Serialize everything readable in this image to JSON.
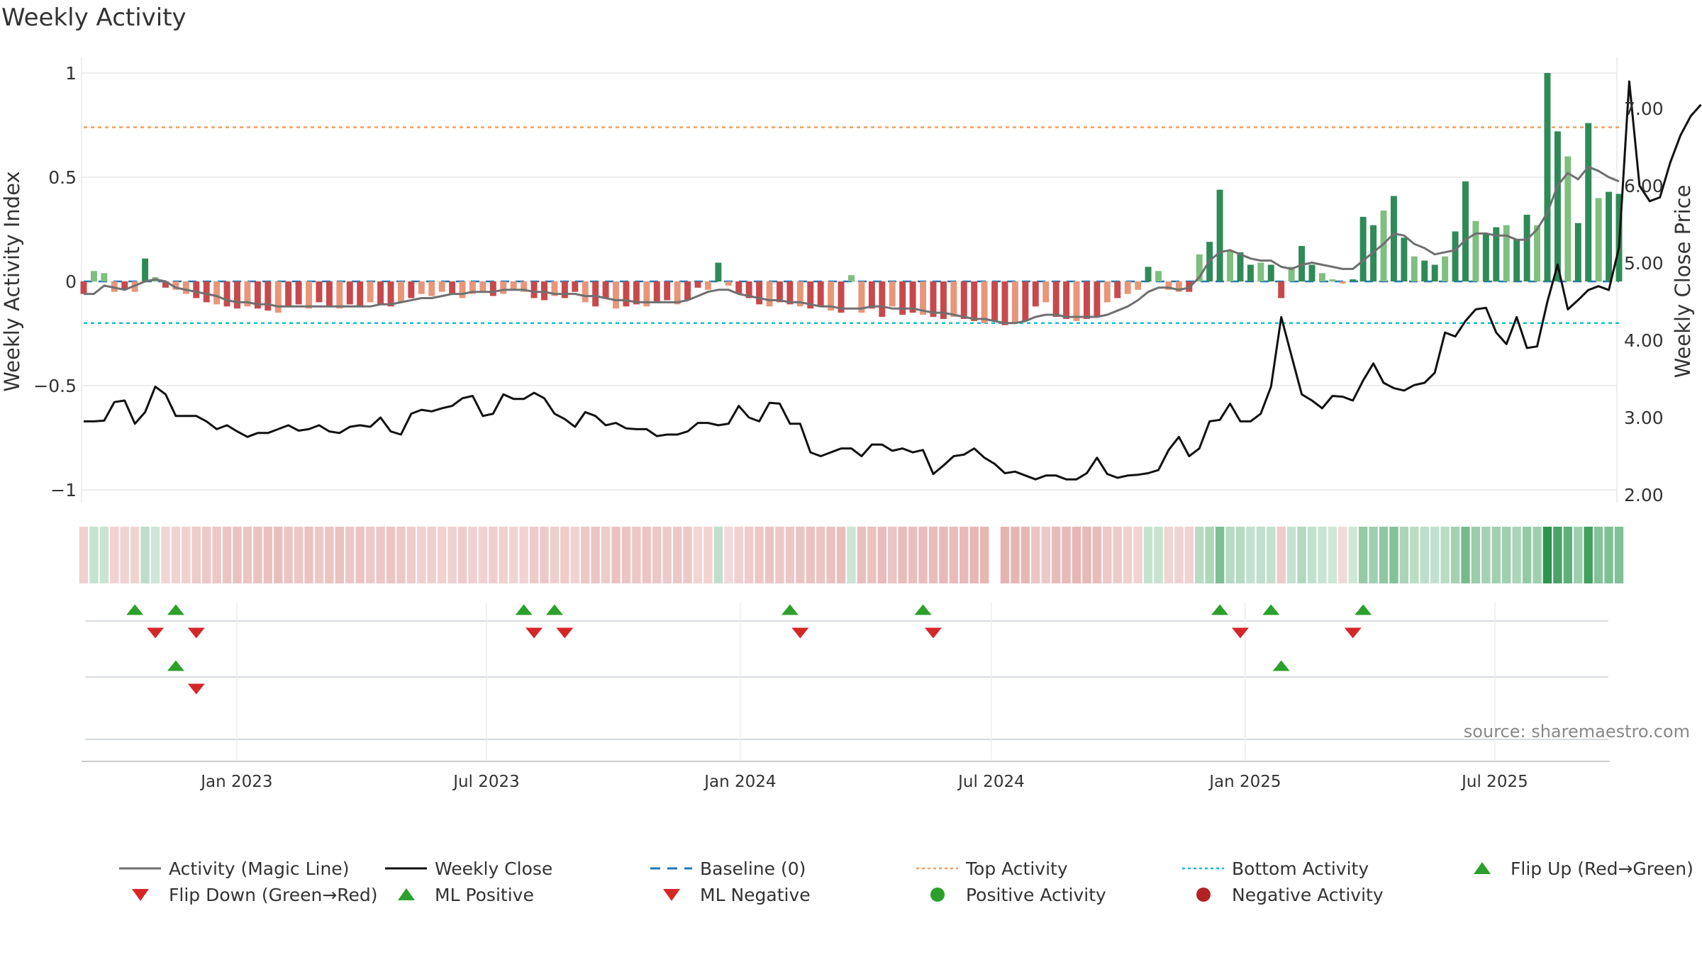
{
  "chart_data": {
    "type": "bar+line",
    "title": "Weekly Activity",
    "left_axis": {
      "label": "Weekly Activity Index",
      "ticks": [
        1,
        0.5,
        0,
        -0.5,
        -1
      ],
      "tick_labels": [
        "1",
        "0.5",
        "0",
        "−0.5",
        "−1"
      ],
      "range": [
        -1.05,
        1.05
      ]
    },
    "right_axis": {
      "label": "Weekly Close Price",
      "ticks": [
        7,
        6,
        5,
        4,
        3,
        2
      ],
      "tick_labels": [
        "7.00",
        "6.00",
        "5.00",
        "4.00",
        "3.00",
        "2.00"
      ],
      "range": [
        1.85,
        7.85
      ]
    },
    "x_axis": {
      "start": "2022-09-12",
      "end": "2025-09-29",
      "tick_labels": [
        "Jan 2023",
        "Jul 2023",
        "Jan 2024",
        "Jul 2024",
        "Jan 2025",
        "Jul 2025"
      ],
      "tick_dates": [
        "2023-01-01",
        "2023-07-01",
        "2024-01-01",
        "2024-07-01",
        "2025-01-01",
        "2025-07-01"
      ]
    },
    "reference_lines": {
      "baseline": 0,
      "top_activity": 0.74,
      "bottom_activity": -0.2
    },
    "weekly_activity": [
      -0.06,
      0.05,
      0.04,
      -0.05,
      -0.04,
      -0.05,
      0.11,
      0.02,
      -0.03,
      -0.04,
      -0.06,
      -0.08,
      -0.1,
      -0.11,
      -0.12,
      -0.13,
      -0.12,
      -0.13,
      -0.14,
      -0.15,
      -0.12,
      -0.11,
      -0.13,
      -0.1,
      -0.12,
      -0.13,
      -0.11,
      -0.12,
      -0.1,
      -0.11,
      -0.12,
      -0.1,
      -0.08,
      -0.06,
      -0.07,
      -0.05,
      -0.06,
      -0.08,
      -0.06,
      -0.05,
      -0.07,
      -0.06,
      -0.04,
      -0.05,
      -0.08,
      -0.09,
      -0.07,
      -0.08,
      -0.05,
      -0.1,
      -0.12,
      -0.08,
      -0.13,
      -0.12,
      -0.11,
      -0.12,
      -0.1,
      -0.09,
      -0.11,
      -0.09,
      -0.03,
      -0.04,
      0.09,
      -0.02,
      -0.06,
      -0.08,
      -0.11,
      -0.12,
      -0.1,
      -0.11,
      -0.12,
      -0.13,
      -0.12,
      -0.14,
      -0.15,
      0.03,
      -0.15,
      -0.13,
      -0.17,
      -0.12,
      -0.16,
      -0.15,
      -0.16,
      -0.17,
      -0.18,
      -0.17,
      -0.18,
      -0.19,
      -0.2,
      -0.19,
      -0.21,
      -0.2,
      -0.19,
      -0.12,
      -0.1,
      -0.17,
      -0.18,
      -0.19,
      -0.18,
      -0.17,
      -0.1,
      -0.08,
      -0.06,
      -0.04,
      0.07,
      0.05,
      -0.04,
      -0.05,
      -0.05,
      0.13,
      0.19,
      0.44,
      0.15,
      0.14,
      0.08,
      0.09,
      0.08,
      -0.08,
      0.07,
      0.17,
      0.08,
      0.04,
      0.01,
      -0.01,
      0.01,
      0.31,
      0.27,
      0.34,
      0.41,
      0.21,
      0.12,
      0.1,
      0.08,
      0.12,
      0.24,
      0.48,
      0.29,
      0.23,
      0.26,
      0.27,
      0.2,
      0.32,
      0.27,
      1.0,
      0.72,
      0.6,
      0.28,
      0.76,
      0.4,
      0.43,
      0.42
    ],
    "magic_line": [
      -0.06,
      -0.06,
      -0.02,
      -0.03,
      -0.04,
      -0.02,
      0.0,
      0.01,
      0.0,
      -0.03,
      -0.04,
      -0.05,
      -0.06,
      -0.07,
      -0.09,
      -0.1,
      -0.1,
      -0.11,
      -0.11,
      -0.12,
      -0.12,
      -0.12,
      -0.12,
      -0.12,
      -0.12,
      -0.12,
      -0.12,
      -0.12,
      -0.12,
      -0.11,
      -0.11,
      -0.1,
      -0.09,
      -0.08,
      -0.08,
      -0.07,
      -0.06,
      -0.06,
      -0.05,
      -0.05,
      -0.05,
      -0.04,
      -0.04,
      -0.04,
      -0.05,
      -0.05,
      -0.06,
      -0.06,
      -0.06,
      -0.07,
      -0.07,
      -0.08,
      -0.09,
      -0.09,
      -0.1,
      -0.1,
      -0.1,
      -0.1,
      -0.1,
      -0.09,
      -0.07,
      -0.05,
      -0.04,
      -0.04,
      -0.06,
      -0.07,
      -0.08,
      -0.09,
      -0.09,
      -0.1,
      -0.1,
      -0.11,
      -0.12,
      -0.12,
      -0.13,
      -0.13,
      -0.13,
      -0.12,
      -0.12,
      -0.13,
      -0.13,
      -0.13,
      -0.14,
      -0.15,
      -0.15,
      -0.16,
      -0.17,
      -0.18,
      -0.18,
      -0.19,
      -0.2,
      -0.2,
      -0.19,
      -0.17,
      -0.16,
      -0.16,
      -0.17,
      -0.17,
      -0.17,
      -0.17,
      -0.16,
      -0.14,
      -0.12,
      -0.09,
      -0.05,
      -0.03,
      -0.03,
      -0.04,
      -0.03,
      0.02,
      0.1,
      0.14,
      0.15,
      0.13,
      0.11,
      0.1,
      0.1,
      0.07,
      0.06,
      0.08,
      0.09,
      0.08,
      0.07,
      0.06,
      0.06,
      0.1,
      0.14,
      0.18,
      0.23,
      0.22,
      0.18,
      0.16,
      0.13,
      0.14,
      0.15,
      0.2,
      0.23,
      0.23,
      0.22,
      0.22,
      0.2,
      0.2,
      0.25,
      0.33,
      0.46,
      0.52,
      0.49,
      0.55,
      0.53,
      0.5,
      0.48
    ],
    "weekly_close": [
      2.95,
      2.95,
      2.96,
      3.2,
      3.22,
      2.92,
      3.07,
      3.4,
      3.3,
      3.02,
      3.02,
      3.02,
      2.95,
      2.85,
      2.9,
      2.82,
      2.75,
      2.8,
      2.8,
      2.85,
      2.9,
      2.83,
      2.85,
      2.9,
      2.82,
      2.8,
      2.88,
      2.9,
      2.88,
      3.0,
      2.82,
      2.78,
      3.05,
      3.1,
      3.08,
      3.12,
      3.15,
      3.25,
      3.28,
      3.02,
      3.05,
      3.3,
      3.24,
      3.24,
      3.32,
      3.25,
      3.05,
      2.98,
      2.88,
      3.07,
      3.02,
      2.9,
      2.93,
      2.86,
      2.85,
      2.85,
      2.76,
      2.78,
      2.78,
      2.82,
      2.93,
      2.93,
      2.9,
      2.92,
      3.15,
      3.0,
      2.95,
      3.19,
      3.18,
      2.92,
      2.92,
      2.55,
      2.5,
      2.55,
      2.6,
      2.6,
      2.5,
      2.65,
      2.65,
      2.57,
      2.6,
      2.55,
      2.58,
      2.27,
      2.38,
      2.5,
      2.52,
      2.6,
      2.48,
      2.4,
      2.28,
      2.3,
      2.25,
      2.2,
      2.25,
      2.25,
      2.2,
      2.2,
      2.28,
      2.48,
      2.27,
      2.22,
      2.25,
      2.26,
      2.28,
      2.32,
      2.58,
      2.75,
      2.5,
      2.6,
      2.95,
      2.97,
      3.18,
      2.95,
      2.95,
      3.05,
      3.4,
      4.3,
      3.8,
      3.3,
      3.22,
      3.12,
      3.28,
      3.27,
      3.22,
      3.48,
      3.7,
      3.45,
      3.38,
      3.35,
      3.42,
      3.45,
      3.58,
      4.1,
      4.05,
      4.25,
      4.4,
      4.42,
      4.1,
      3.95,
      4.3,
      3.9,
      3.92,
      4.5,
      4.98,
      4.4,
      4.52,
      4.65,
      4.7,
      4.65,
      5.2,
      7.35,
      6.0,
      5.8,
      5.85,
      6.3,
      6.65,
      6.9,
      7.05
    ],
    "heat_strip_gap_index": 89,
    "signal_rows": [
      {
        "name": "flip",
        "up": [
          5,
          9,
          43,
          46,
          69,
          82,
          111,
          116,
          125
        ],
        "down": [
          7,
          11,
          44,
          47,
          70,
          83,
          113,
          124
        ]
      },
      {
        "name": "magic_line",
        "up": [
          9,
          117
        ],
        "down": [
          11
        ]
      },
      {
        "name": "activity",
        "up": [],
        "down": []
      }
    ],
    "legend": [
      {
        "label": "Activity (Magic Line)",
        "marker": "line-gray"
      },
      {
        "label": "Weekly Close",
        "marker": "line-black"
      },
      {
        "label": "Baseline (0)",
        "marker": "dash-blue"
      },
      {
        "label": "Top Activity",
        "marker": "dot-orange"
      },
      {
        "label": "Bottom Activity",
        "marker": "dot-cyan"
      },
      {
        "label": "Flip Up (Red→Green)",
        "marker": "triangle-up-green"
      },
      {
        "label": "Flip Down (Green→Red)",
        "marker": "triangle-down-red"
      },
      {
        "label": "ML Positive",
        "marker": "triangle-up-green"
      },
      {
        "label": "ML Negative",
        "marker": "triangle-down-red"
      },
      {
        "label": "Positive Activity",
        "marker": "circle-green"
      },
      {
        "label": "Negative Activity",
        "marker": "circle-red"
      }
    ],
    "source": "source: sharemaestro.com"
  },
  "colors": {
    "strong_green": "#2e8b57",
    "light_green": "#7fbf7f",
    "strong_red": "#c8494c",
    "light_red": "#e8967a",
    "magic_line": "#707070",
    "close": "#111111",
    "baseline": "#1f77b4",
    "top": "#f0a060",
    "bottom": "#17becf",
    "marker_up": "#2ca02c",
    "marker_down": "#d62728",
    "dot_green": "#2ca02c",
    "dot_red": "#b22222",
    "grid": "#e8e8e8",
    "axis": "#cccccc",
    "text": "#333333",
    "source": "#888888"
  }
}
